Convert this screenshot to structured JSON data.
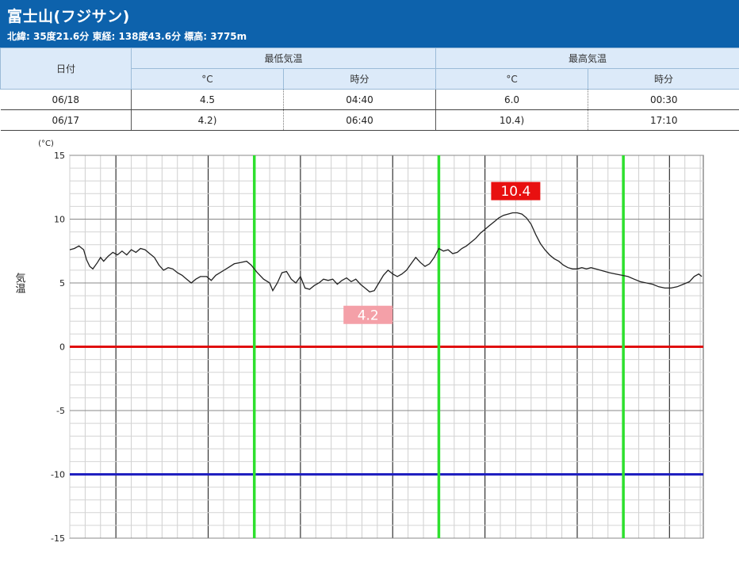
{
  "header": {
    "title": "富士山(フジサン)",
    "subtitle": "北緯: 35度21.6分 東経: 138度43.6分 標高: 3775m",
    "background": "#0d62ac"
  },
  "table": {
    "date_header": "日付",
    "min_header": "最低気温",
    "max_header": "最高気温",
    "unit_header": "°C",
    "time_header": "時分",
    "rows": [
      {
        "date": "06/18",
        "min": "4.5",
        "min_time": "04:40",
        "max": "6.0",
        "max_time": "00:30"
      },
      {
        "date": "06/17",
        "min": "4.2)",
        "min_time": "06:40",
        "max": "10.4)",
        "max_time": "17:10"
      }
    ]
  },
  "chart_data": {
    "type": "line",
    "ylabel": "気温",
    "yunit": "(°C)",
    "ylim": [
      -15,
      15
    ],
    "yticks": [
      15,
      10,
      5,
      0,
      -5,
      -10,
      -15
    ],
    "series": [
      {
        "color": "#222222",
        "points": [
          [
            0,
            7.6
          ],
          [
            0.3,
            7.7
          ],
          [
            0.6,
            7.9
          ],
          [
            0.9,
            7.6
          ],
          [
            1.1,
            6.8
          ],
          [
            1.3,
            6.3
          ],
          [
            1.5,
            6.1
          ],
          [
            1.8,
            6.6
          ],
          [
            2.0,
            7.0
          ],
          [
            2.2,
            6.7
          ],
          [
            2.5,
            7.1
          ],
          [
            2.8,
            7.4
          ],
          [
            3.1,
            7.2
          ],
          [
            3.4,
            7.5
          ],
          [
            3.7,
            7.2
          ],
          [
            4.0,
            7.6
          ],
          [
            4.3,
            7.4
          ],
          [
            4.6,
            7.7
          ],
          [
            4.9,
            7.6
          ],
          [
            5.2,
            7.3
          ],
          [
            5.5,
            7.0
          ],
          [
            5.8,
            6.4
          ],
          [
            6.1,
            6.0
          ],
          [
            6.4,
            6.2
          ],
          [
            6.7,
            6.1
          ],
          [
            7.0,
            5.8
          ],
          [
            7.3,
            5.6
          ],
          [
            7.6,
            5.3
          ],
          [
            7.9,
            5.0
          ],
          [
            8.2,
            5.3
          ],
          [
            8.5,
            5.5
          ],
          [
            8.9,
            5.5
          ],
          [
            9.2,
            5.2
          ],
          [
            9.5,
            5.6
          ],
          [
            9.9,
            5.9
          ],
          [
            10.3,
            6.2
          ],
          [
            10.7,
            6.5
          ],
          [
            11.1,
            6.6
          ],
          [
            11.5,
            6.7
          ],
          [
            11.8,
            6.4
          ],
          [
            12.2,
            5.8
          ],
          [
            12.6,
            5.3
          ],
          [
            13.0,
            5.0
          ],
          [
            13.2,
            4.4
          ],
          [
            13.5,
            5.0
          ],
          [
            13.8,
            5.8
          ],
          [
            14.1,
            5.9
          ],
          [
            14.4,
            5.3
          ],
          [
            14.7,
            5.0
          ],
          [
            15.0,
            5.5
          ],
          [
            15.3,
            4.6
          ],
          [
            15.6,
            4.5
          ],
          [
            15.9,
            4.8
          ],
          [
            16.2,
            5.0
          ],
          [
            16.5,
            5.3
          ],
          [
            16.8,
            5.2
          ],
          [
            17.1,
            5.3
          ],
          [
            17.4,
            4.9
          ],
          [
            17.7,
            5.2
          ],
          [
            18.0,
            5.4
          ],
          [
            18.3,
            5.1
          ],
          [
            18.6,
            5.3
          ],
          [
            18.9,
            4.9
          ],
          [
            19.2,
            4.6
          ],
          [
            19.5,
            4.3
          ],
          [
            19.8,
            4.4
          ],
          [
            20.1,
            5.0
          ],
          [
            20.4,
            5.6
          ],
          [
            20.7,
            6.0
          ],
          [
            21.0,
            5.7
          ],
          [
            21.3,
            5.5
          ],
          [
            21.6,
            5.7
          ],
          [
            21.9,
            6.0
          ],
          [
            22.2,
            6.5
          ],
          [
            22.5,
            7.0
          ],
          [
            22.8,
            6.6
          ],
          [
            23.1,
            6.3
          ],
          [
            23.4,
            6.5
          ],
          [
            23.7,
            7.0
          ],
          [
            24.0,
            7.7
          ],
          [
            24.3,
            7.5
          ],
          [
            24.6,
            7.6
          ],
          [
            24.9,
            7.3
          ],
          [
            25.2,
            7.4
          ],
          [
            25.5,
            7.7
          ],
          [
            25.8,
            7.9
          ],
          [
            26.1,
            8.2
          ],
          [
            26.4,
            8.5
          ],
          [
            26.7,
            8.9
          ],
          [
            27.0,
            9.2
          ],
          [
            27.3,
            9.5
          ],
          [
            27.6,
            9.8
          ],
          [
            27.9,
            10.1
          ],
          [
            28.2,
            10.3
          ],
          [
            28.5,
            10.4
          ],
          [
            28.8,
            10.5
          ],
          [
            29.1,
            10.5
          ],
          [
            29.4,
            10.4
          ],
          [
            29.7,
            10.1
          ],
          [
            30.0,
            9.6
          ],
          [
            30.3,
            8.8
          ],
          [
            30.6,
            8.1
          ],
          [
            30.9,
            7.6
          ],
          [
            31.2,
            7.2
          ],
          [
            31.5,
            6.9
          ],
          [
            31.8,
            6.7
          ],
          [
            32.1,
            6.4
          ],
          [
            32.4,
            6.2
          ],
          [
            32.7,
            6.1
          ],
          [
            33.0,
            6.1
          ],
          [
            33.3,
            6.2
          ],
          [
            33.6,
            6.1
          ],
          [
            33.9,
            6.2
          ],
          [
            34.2,
            6.1
          ],
          [
            34.5,
            6.0
          ],
          [
            34.8,
            5.9
          ],
          [
            35.1,
            5.8
          ],
          [
            35.5,
            5.7
          ],
          [
            35.9,
            5.6
          ],
          [
            36.3,
            5.5
          ],
          [
            36.7,
            5.3
          ],
          [
            37.1,
            5.1
          ],
          [
            37.5,
            5.0
          ],
          [
            37.9,
            4.9
          ],
          [
            38.3,
            4.7
          ],
          [
            38.7,
            4.6
          ],
          [
            39.1,
            4.6
          ],
          [
            39.5,
            4.7
          ],
          [
            39.9,
            4.9
          ],
          [
            40.3,
            5.1
          ],
          [
            40.6,
            5.5
          ],
          [
            40.9,
            5.7
          ],
          [
            41.1,
            5.5
          ]
        ]
      }
    ],
    "vertical_markers": {
      "color": "#2ee02e",
      "x": [
        12,
        24,
        36
      ]
    },
    "reference_lines": [
      {
        "y": 0,
        "color": "#e01010"
      },
      {
        "y": -10,
        "color": "#2020c0"
      }
    ],
    "annotations": [
      {
        "text": "10.4",
        "x": 29.0,
        "y": 12.2,
        "bg": "#e81010",
        "color": "#ffffff"
      },
      {
        "text": "4.2",
        "x": 19.4,
        "y": 2.5,
        "bg": "#f4a0a8",
        "color": "#ffffff"
      }
    ],
    "grid": true
  }
}
